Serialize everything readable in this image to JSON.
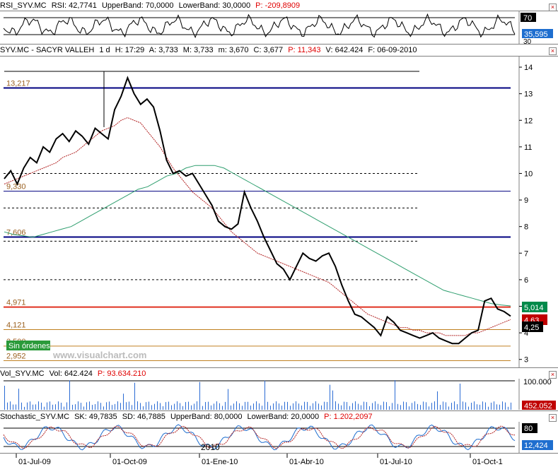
{
  "rsi_panel": {
    "title": "RSI_SYV.MC",
    "value_label": "RSI: 42,7741",
    "upper_band": "UpperBand: 70,0000",
    "lower_band": "LowerBand: 30,0000",
    "p_value": "P: -209,8909",
    "scale_top": "70",
    "current_value": "35,595",
    "scale_bottom": "30"
  },
  "price_panel": {
    "symbol": "SYV.MC - SACYR VALLEH",
    "period": "1 d",
    "h": "H: 17:29",
    "a": "A: 3,733",
    "m": "M: 3,733",
    "min": "m: 3,670",
    "c": "C: 3,677",
    "p": "P: 11,343",
    "v": "V: 642.424",
    "f": "F: 06-09-2010",
    "watermark": "www.visualchart.com",
    "order_badge": "Sin órdenes",
    "tag_green": "5,014",
    "tag_red": "4,63",
    "tag_black": "4,25"
  },
  "volume_panel": {
    "title": "Vol_SYV.MC",
    "vol": "Vol: 642.424",
    "p": "P: 93.634.210",
    "scale_top": "100.000",
    "current_value": "452.052"
  },
  "stoch_panel": {
    "title": "Stochastic_SYV.MC",
    "sk": "SK: 49,7835",
    "sd": "SD: 46,7885",
    "upper_band": "UpperBand: 80,0000",
    "lower_band": "LowerBand: 20,0000",
    "p": "P: 1.202,2097",
    "scale_top": "80",
    "current_value": "12,424",
    "year_label": "2010"
  },
  "colors": {
    "sma_fast": "#b22222",
    "sma_slow": "#2e9e6e",
    "level_navy": "#000080",
    "level_red": "#e03020",
    "level_orange": "#c08020",
    "label_brown": "#9a6020",
    "header_red": "#e00000",
    "tag_green_bg": "#008a4a",
    "tag_red_bg": "#c00000",
    "stoch_blue": "#1e6ecf",
    "volume_bar": "#2a6bd4",
    "badge_green": "#2a9a3a"
  },
  "chart_data": {
    "type": "line",
    "x_tick_labels": [
      "01-Jul-09",
      "01-Oct-09",
      "01-Ene-10",
      "01-Abr-10",
      "01-Jul-10",
      "01-Oct-1"
    ],
    "y_tick_labels": [
      "14",
      "13",
      "12",
      "11",
      "10",
      "9",
      "8",
      "7",
      "6",
      "5",
      "4",
      "3"
    ],
    "ylim": [
      2.7,
      14.4
    ],
    "level_labels": [
      {
        "value": 13.217,
        "label": "13,217"
      },
      {
        "value": 9.33,
        "label": "9,330"
      },
      {
        "value": 7.606,
        "label": "7,606"
      },
      {
        "value": 4.971,
        "label": "4,971"
      },
      {
        "value": 4.121,
        "label": "4,121"
      },
      {
        "value": 3.5,
        "label": "3,500"
      },
      {
        "value": 2.952,
        "label": "2,952"
      }
    ],
    "close": [
      9.8,
      10.1,
      9.6,
      10.2,
      10.6,
      10.4,
      11.0,
      10.8,
      11.3,
      11.5,
      11.2,
      11.6,
      11.4,
      11.1,
      11.7,
      11.5,
      11.3,
      12.4,
      12.9,
      13.6,
      13.0,
      12.6,
      12.8,
      12.5,
      11.6,
      10.5,
      10.0,
      10.1,
      9.9,
      10.0,
      9.6,
      9.2,
      8.8,
      8.2,
      8.0,
      7.9,
      8.1,
      9.3,
      8.7,
      8.2,
      7.6,
      7.1,
      6.6,
      6.4,
      6.0,
      6.5,
      7.0,
      6.8,
      6.7,
      6.9,
      7.0,
      6.5,
      5.8,
      5.2,
      4.7,
      4.6,
      4.4,
      4.2,
      3.9,
      4.6,
      4.4,
      4.1,
      4.0,
      3.9,
      3.8,
      3.9,
      4.0,
      3.8,
      3.7,
      3.6,
      3.6,
      3.8,
      4.0,
      4.1,
      5.2,
      5.3,
      4.9,
      4.8,
      4.63
    ],
    "sma_fast": [
      9.6,
      9.7,
      9.8,
      9.9,
      10.0,
      10.1,
      10.2,
      10.3,
      10.4,
      10.6,
      10.7,
      10.8,
      11.0,
      11.2,
      11.4,
      11.6,
      11.7,
      11.8,
      12.0,
      12.1,
      12.0,
      11.9,
      11.6,
      11.3,
      11.0,
      10.6,
      10.2,
      9.9,
      9.6,
      9.3,
      9.1,
      8.9,
      8.7,
      8.4,
      8.1,
      7.8,
      7.6,
      7.4,
      7.2,
      7.0,
      6.9,
      6.8,
      6.7,
      6.6,
      6.5,
      6.4,
      6.3,
      6.2,
      6.1,
      6.0,
      5.9,
      5.7,
      5.5,
      5.3,
      5.1,
      4.9,
      4.7,
      4.6,
      4.5,
      4.4,
      4.3,
      4.2,
      4.2,
      4.1,
      4.1,
      4.0,
      4.0,
      4.0,
      3.9,
      3.9,
      3.9,
      3.9,
      4.0,
      4.0,
      4.1,
      4.2,
      4.3,
      4.4,
      4.5
    ],
    "sma_slow": [
      7.8,
      7.7,
      7.65,
      7.6,
      7.7,
      7.8,
      7.9,
      8.0,
      8.2,
      8.4,
      8.6,
      8.8,
      9.0,
      9.2,
      9.4,
      9.5,
      9.7,
      9.9,
      10.0,
      10.2,
      10.3,
      10.3,
      10.3,
      10.2,
      10.0,
      9.8,
      9.6,
      9.4,
      9.2,
      9.0,
      8.8,
      8.6,
      8.4,
      8.2,
      8.0,
      7.8,
      7.6,
      7.4,
      7.2,
      7.0,
      6.8,
      6.6,
      6.4,
      6.2,
      6.0,
      5.8,
      5.6,
      5.5,
      5.4,
      5.3,
      5.2,
      5.1,
      5.05,
      5.014
    ]
  }
}
